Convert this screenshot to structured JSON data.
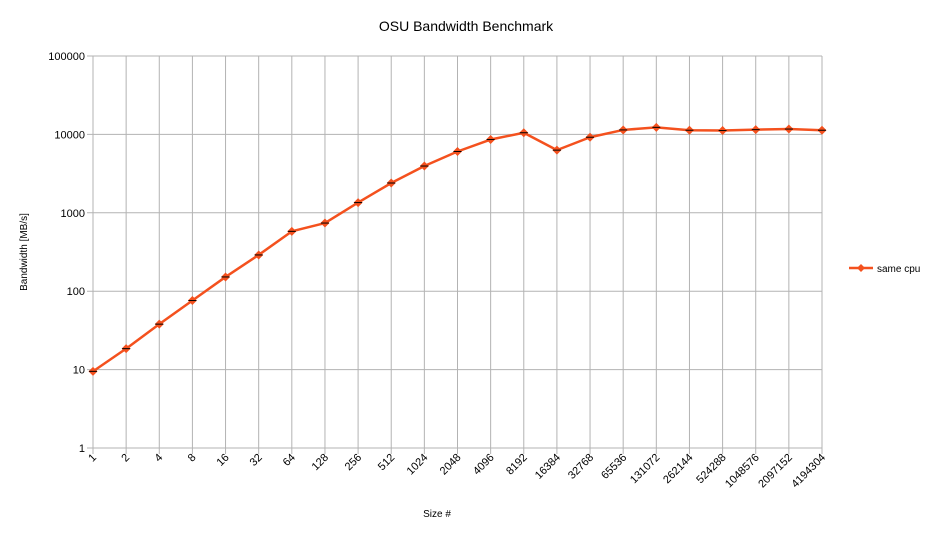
{
  "chart_data": {
    "type": "line",
    "title": "OSU Bandwidth Benchmark",
    "xlabel": "Size #",
    "ylabel": "Bandwidth [MB/s]",
    "y_scale": "log",
    "ylim": [
      1,
      100000
    ],
    "y_ticks": [
      "1",
      "10",
      "100",
      "1000",
      "10000",
      "100000"
    ],
    "categories": [
      "1",
      "2",
      "4",
      "8",
      "16",
      "32",
      "64",
      "128",
      "256",
      "512",
      "1024",
      "2048",
      "4096",
      "8192",
      "16384",
      "32768",
      "65536",
      "131072",
      "262144",
      "524288",
      "1048576",
      "2097152",
      "4194304"
    ],
    "series": [
      {
        "name": "same cpu",
        "color": "#f4511e",
        "values": [
          9.5,
          18.5,
          38,
          76,
          152,
          290,
          580,
          740,
          1350,
          2400,
          3950,
          6050,
          8600,
          10500,
          6300,
          9200,
          11400,
          12300,
          11300,
          11200,
          11500,
          11700,
          11300
        ]
      }
    ],
    "grid": true,
    "legend_position": "right"
  }
}
